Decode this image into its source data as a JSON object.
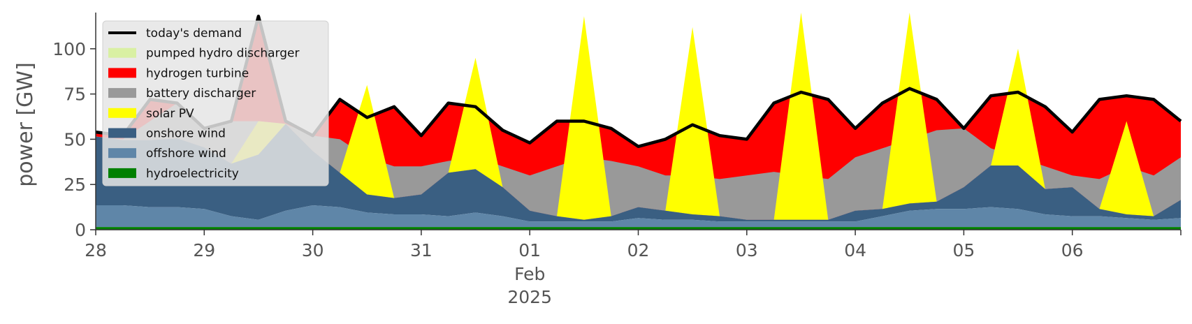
{
  "chart_data": {
    "type": "area",
    "ylabel": "power [GW]",
    "ylim": [
      0,
      120
    ],
    "y_ticks": [
      0,
      25,
      50,
      75,
      100
    ],
    "xlim": [
      "2025-01-28",
      "2025-02-07"
    ],
    "x_tick_labels": [
      "28",
      "29",
      "30",
      "31",
      "01",
      "02",
      "03",
      "04",
      "05",
      "06"
    ],
    "x_secondary_label": [
      "Feb",
      "2025"
    ],
    "grid": false,
    "legend_position": "top-left",
    "stack_order": [
      "hydroelectricity",
      "offshore wind",
      "onshore wind",
      "solar PV",
      "battery discharger",
      "hydrogen turbine",
      "pumped hydro discharger"
    ],
    "x": [
      "2025-01-28 00:00",
      "2025-01-28 06:00",
      "2025-01-28 12:00",
      "2025-01-28 18:00",
      "2025-01-29 00:00",
      "2025-01-29 06:00",
      "2025-01-29 12:00",
      "2025-01-29 18:00",
      "2025-01-30 00:00",
      "2025-01-30 06:00",
      "2025-01-30 12:00",
      "2025-01-30 18:00",
      "2025-01-31 00:00",
      "2025-01-31 06:00",
      "2025-01-31 12:00",
      "2025-01-31 18:00",
      "2025-02-01 00:00",
      "2025-02-01 06:00",
      "2025-02-01 12:00",
      "2025-02-01 18:00",
      "2025-02-02 00:00",
      "2025-02-02 06:00",
      "2025-02-02 12:00",
      "2025-02-02 18:00",
      "2025-02-03 00:00",
      "2025-02-03 06:00",
      "2025-02-03 12:00",
      "2025-02-03 18:00",
      "2025-02-04 00:00",
      "2025-02-04 06:00",
      "2025-02-04 12:00",
      "2025-02-04 18:00",
      "2025-02-05 00:00",
      "2025-02-05 06:00",
      "2025-02-05 12:00",
      "2025-02-05 18:00",
      "2025-02-06 00:00",
      "2025-02-06 06:00",
      "2025-02-06 12:00",
      "2025-02-06 18:00",
      "2025-02-07 00:00"
    ],
    "series": [
      {
        "name": "hydroelectricity",
        "color": "#008000",
        "values": [
          1.5,
          1.5,
          1.5,
          1.5,
          1.5,
          1.5,
          1.5,
          1.5,
          1.5,
          1.5,
          1.5,
          1.5,
          1.5,
          1.5,
          1.5,
          1.5,
          1.5,
          1.5,
          1.5,
          1.5,
          1.5,
          1.5,
          1.5,
          1.5,
          1.5,
          1.5,
          1.5,
          1.5,
          1.5,
          1.5,
          1.5,
          1.5,
          1.5,
          1.5,
          1.5,
          1.5,
          1.5,
          1.5,
          1.5,
          1.5,
          1.5
        ]
      },
      {
        "name": "offshore wind",
        "color": "#5f86a8",
        "values": [
          12,
          12,
          11,
          11,
          10,
          6,
          4,
          9,
          12,
          11,
          8,
          7,
          7,
          6,
          8,
          6,
          3,
          3,
          3,
          3,
          5,
          4,
          4,
          3,
          3,
          3,
          3,
          3,
          3,
          6,
          9,
          10,
          10,
          11,
          10,
          7,
          6,
          6,
          5,
          4,
          5
        ]
      },
      {
        "name": "onshore wind",
        "color": "#3a5f82",
        "values": [
          38,
          36,
          37,
          38,
          34,
          29,
          36,
          48,
          30,
          19,
          10,
          9,
          11,
          24,
          24,
          16,
          6,
          3,
          1,
          3,
          6,
          5,
          3,
          3,
          1,
          1,
          1,
          1,
          6,
          4,
          4,
          4,
          12,
          23,
          24,
          14,
          16,
          4,
          2,
          2,
          10
        ]
      },
      {
        "name": "solar PV",
        "color": "#ffff00",
        "values": [
          0,
          0,
          0,
          0,
          0,
          0,
          0,
          0,
          0,
          0,
          0,
          0,
          0,
          0,
          0,
          0,
          0,
          0,
          0,
          0,
          0,
          0,
          0,
          0,
          0,
          0,
          0,
          0,
          0,
          0,
          0,
          0,
          0,
          0,
          0,
          0,
          0,
          0,
          0,
          0,
          0
        ],
        "display_total": [
          0,
          0,
          0,
          0,
          0,
          0,
          60,
          0,
          0,
          0,
          80,
          0,
          0,
          0,
          95,
          0,
          0,
          0,
          118,
          0,
          0,
          0,
          112,
          0,
          0,
          0,
          120,
          0,
          0,
          0,
          120,
          0,
          0,
          0,
          100,
          0,
          0,
          0,
          60,
          0,
          0
        ]
      },
      {
        "name": "battery discharger",
        "color": "#999999",
        "values": [
          0,
          0,
          0,
          0,
          0,
          0,
          0,
          0,
          0,
          0,
          0,
          0,
          0,
          0,
          0,
          0,
          0,
          0,
          0,
          0,
          0,
          0,
          0,
          0,
          0,
          0,
          0,
          0,
          0,
          0,
          0,
          0,
          0,
          0,
          0,
          0,
          0,
          0,
          0,
          0,
          0
        ],
        "display_total": [
          50,
          50,
          60,
          70,
          65,
          70,
          60,
          58,
          55,
          50,
          40,
          35,
          35,
          38,
          40,
          35,
          30,
          35,
          40,
          38,
          35,
          30,
          30,
          28,
          30,
          32,
          30,
          28,
          40,
          45,
          50,
          55,
          60,
          45,
          40,
          35,
          30,
          28,
          35,
          30,
          40
        ]
      },
      {
        "name": "hydrogen turbine",
        "color": "#ff0000",
        "values": [
          0,
          0,
          0,
          0,
          0,
          0,
          0,
          0,
          0,
          0,
          0,
          0,
          0,
          0,
          0,
          0,
          0,
          0,
          0,
          0,
          0,
          0,
          0,
          0,
          0,
          0,
          0,
          0,
          0,
          0,
          0,
          0,
          0,
          0,
          0,
          0,
          0,
          0,
          0,
          0,
          0
        ]
      },
      {
        "name": "pumped hydro discharger",
        "color": "#d9f0a3",
        "values": [
          0,
          0,
          0,
          0,
          0,
          0,
          0,
          0,
          0,
          0,
          0,
          0,
          0,
          0,
          0,
          0,
          0,
          0,
          0,
          0,
          0,
          0,
          0,
          0,
          0,
          0,
          0,
          0,
          0,
          0,
          0,
          0,
          0,
          0,
          0,
          0,
          0,
          0,
          0,
          0,
          0
        ]
      }
    ],
    "demand": {
      "name": "today's demand",
      "color": "#000000",
      "values": [
        54,
        52,
        72,
        70,
        56,
        60,
        118,
        60,
        52,
        72,
        62,
        68,
        52,
        70,
        68,
        55,
        48,
        60,
        60,
        56,
        46,
        50,
        58,
        52,
        50,
        70,
        76,
        72,
        56,
        70,
        78,
        72,
        56,
        74,
        76,
        68,
        54,
        72,
        74,
        72,
        60
      ]
    },
    "legend": [
      {
        "label": "today's demand",
        "color": "#000000",
        "kind": "line"
      },
      {
        "label": "pumped hydro discharger",
        "color": "#d9f0a3",
        "kind": "patch"
      },
      {
        "label": "hydrogen turbine",
        "color": "#ff0000",
        "kind": "patch"
      },
      {
        "label": "battery discharger",
        "color": "#999999",
        "kind": "patch"
      },
      {
        "label": "solar PV",
        "color": "#ffff00",
        "kind": "patch"
      },
      {
        "label": "onshore wind",
        "color": "#3a5f82",
        "kind": "patch"
      },
      {
        "label": "offshore wind",
        "color": "#5f86a8",
        "kind": "patch"
      },
      {
        "label": "hydroelectricity",
        "color": "#008000",
        "kind": "patch"
      }
    ]
  }
}
